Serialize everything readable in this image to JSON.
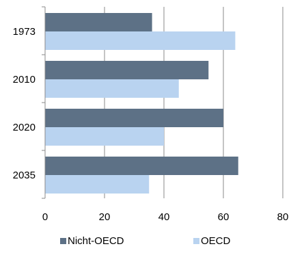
{
  "chart_data": {
    "type": "bar",
    "orientation": "horizontal",
    "categories": [
      "1973",
      "2010",
      "2020",
      "2035"
    ],
    "series": [
      {
        "name": "Nicht-OECD",
        "values": [
          36,
          55,
          60,
          65
        ],
        "color": "#5d7186"
      },
      {
        "name": "OECD",
        "values": [
          64,
          45,
          40,
          35
        ],
        "color": "#b9d3f0"
      }
    ],
    "xlim": [
      0,
      80
    ],
    "xticks": [
      "0",
      "20",
      "40",
      "60",
      "80"
    ],
    "grid": true,
    "legend_position": "bottom"
  }
}
